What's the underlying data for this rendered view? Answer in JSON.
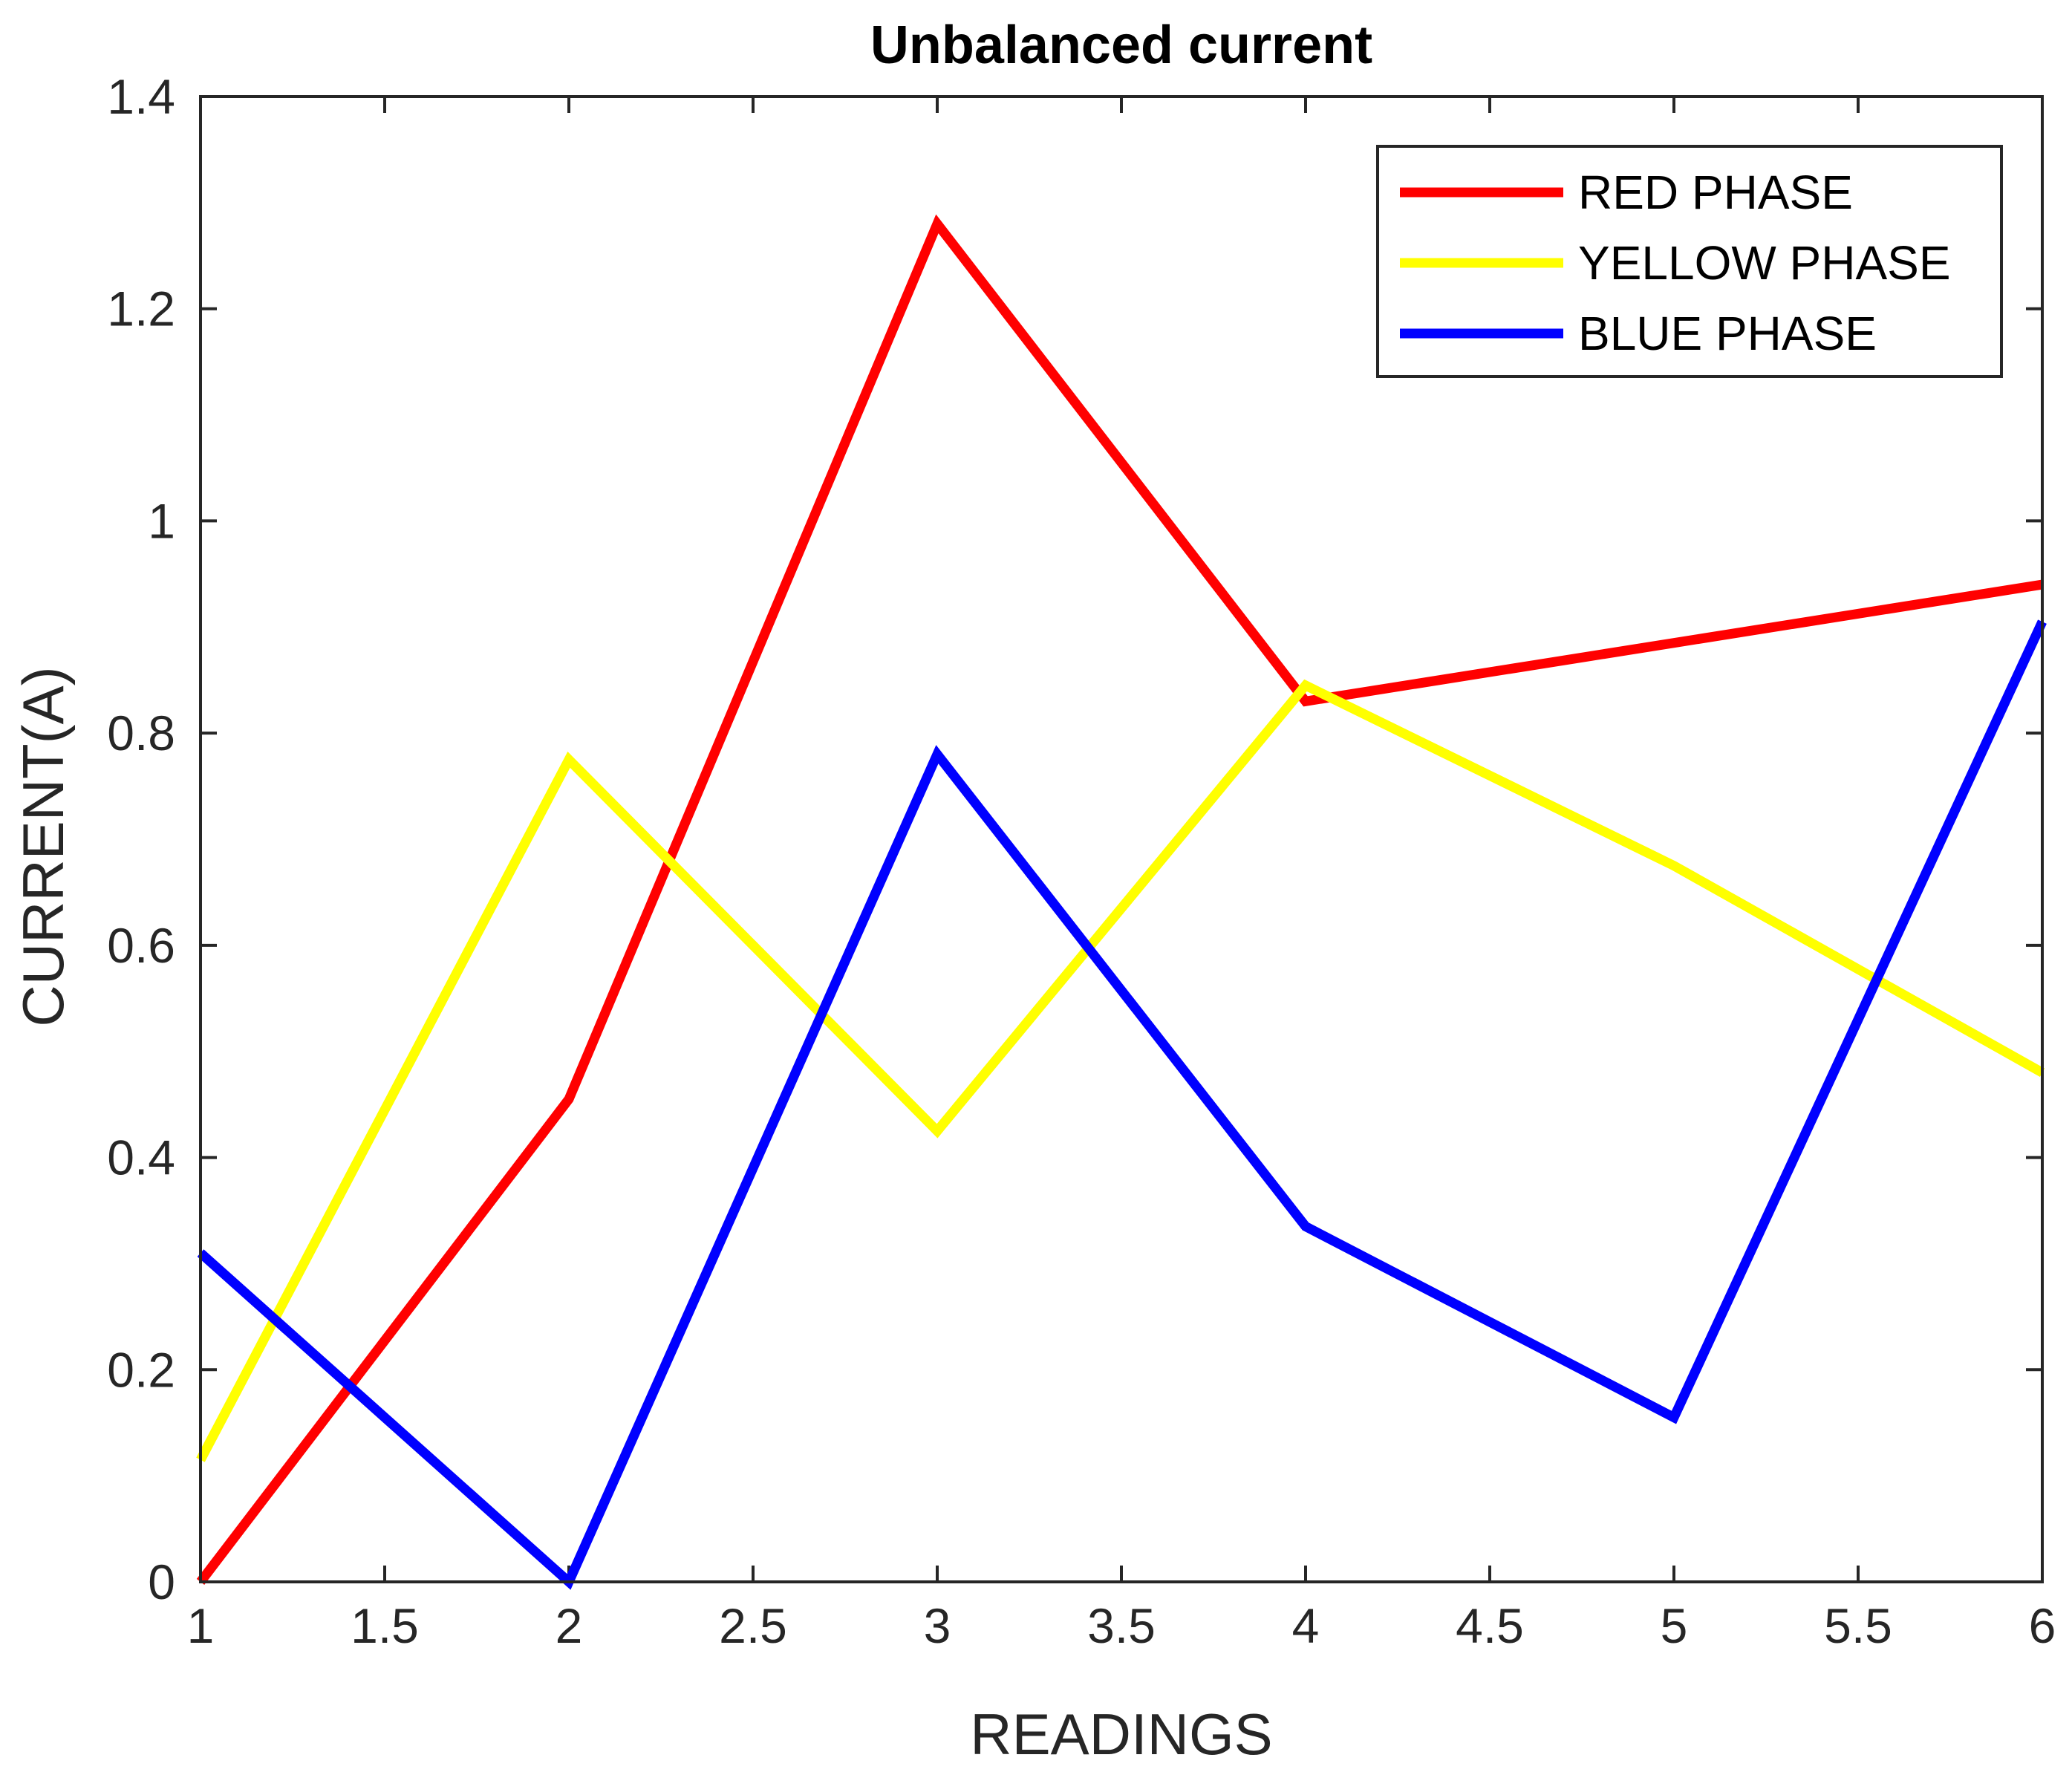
{
  "chart_data": {
    "type": "line",
    "title": "Unbalanced current",
    "xlabel": "READINGS",
    "ylabel": "CURRENT(A)",
    "xlim": [
      1,
      6
    ],
    "ylim": [
      0,
      1.4
    ],
    "xticks": [
      1,
      1.5,
      2,
      2.5,
      3,
      3.5,
      4,
      4.5,
      5,
      5.5,
      6
    ],
    "xtick_labels": [
      "1",
      "1.5",
      "2",
      "2.5",
      "3",
      "3.5",
      "4",
      "4.5",
      "5",
      "5.5",
      "6"
    ],
    "yticks": [
      0,
      0.2,
      0.4,
      0.6,
      0.8,
      1,
      1.2,
      1.4
    ],
    "ytick_labels": [
      "0",
      "0.2",
      "0.4",
      "0.6",
      "0.8",
      "1",
      "1.2",
      "1.4"
    ],
    "grid": false,
    "legend_position": "top-right",
    "x": [
      1,
      2,
      3,
      4,
      5,
      6
    ],
    "series": [
      {
        "name": "RED PHASE",
        "color": "#ff0000",
        "values": [
          0.0,
          0.455,
          1.28,
          0.83,
          0.885,
          0.94
        ]
      },
      {
        "name": "YELLOW PHASE",
        "color": "#ffff00",
        "values": [
          0.115,
          0.775,
          0.425,
          0.845,
          0.675,
          0.48
        ]
      },
      {
        "name": "BLUE PHASE",
        "color": "#0000ff",
        "values": [
          0.31,
          0.0,
          0.78,
          0.335,
          0.155,
          0.905
        ]
      }
    ]
  }
}
